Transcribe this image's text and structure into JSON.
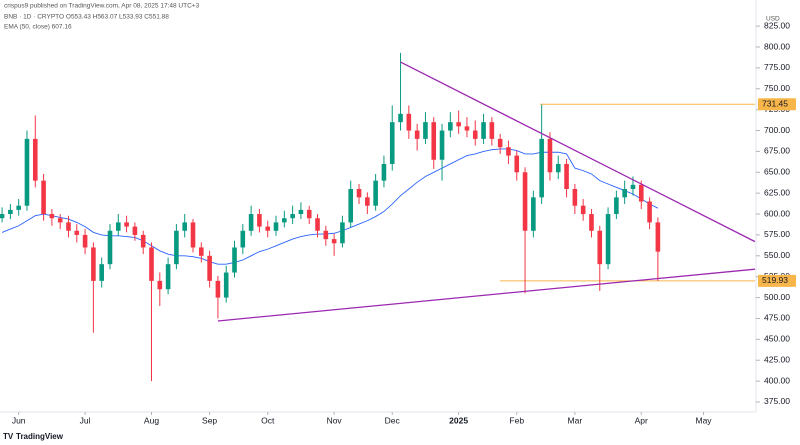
{
  "chart_data": {
    "type": "candlestick",
    "header": "crispus9 published on TradingView.com, Apr 08, 2025 17:48 UTC+3",
    "title": "BNB · 1D · CRYPTO  O553.43  H563.07  L533.93  C551.88",
    "indicator": "EMA (50, close)  607.16",
    "currency": "USD",
    "footer": "TradingView",
    "up_color": "#089981",
    "down_color": "#f23645",
    "open": [
      595,
      600,
      605,
      610,
      690,
      640,
      600,
      595,
      590,
      580,
      575,
      560,
      520,
      540,
      580,
      590,
      585,
      575,
      560,
      520,
      510,
      540,
      580,
      590,
      560,
      550,
      520,
      500,
      530,
      560,
      580,
      600,
      585,
      580,
      590,
      595,
      600,
      605,
      595,
      580,
      570,
      565,
      590,
      630,
      620,
      610,
      640,
      660,
      710,
      720,
      700,
      690,
      710,
      665,
      700,
      710,
      705,
      700,
      690,
      710,
      690,
      680,
      670,
      650,
      580,
      620,
      690,
      650,
      660,
      630,
      610,
      600,
      580,
      540,
      600,
      620,
      630,
      635,
      615,
      590
    ],
    "high": [
      608,
      612,
      618,
      700,
      718,
      648,
      606,
      600,
      598,
      588,
      582,
      566,
      548,
      588,
      600,
      598,
      590,
      580,
      566,
      530,
      548,
      588,
      600,
      594,
      566,
      556,
      526,
      538,
      568,
      588,
      610,
      606,
      592,
      598,
      604,
      610,
      614,
      610,
      600,
      586,
      576,
      598,
      640,
      636,
      626,
      648,
      670,
      730,
      793,
      730,
      708,
      722,
      716,
      708,
      722,
      724,
      716,
      712,
      720,
      716,
      696,
      688,
      676,
      656,
      628,
      731,
      698,
      670,
      666,
      636,
      618,
      606,
      586,
      608,
      628,
      640,
      645,
      640,
      620,
      596
    ],
    "low": [
      590,
      594,
      598,
      604,
      632,
      592,
      586,
      582,
      572,
      566,
      552,
      458,
      512,
      534,
      574,
      578,
      568,
      552,
      400,
      490,
      504,
      534,
      572,
      554,
      542,
      512,
      475,
      494,
      524,
      552,
      574,
      578,
      572,
      574,
      584,
      588,
      594,
      588,
      572,
      562,
      550,
      560,
      584,
      612,
      600,
      604,
      632,
      652,
      700,
      690,
      676,
      684,
      654,
      640,
      692,
      696,
      692,
      682,
      684,
      682,
      672,
      660,
      640,
      505,
      572,
      612,
      640,
      642,
      620,
      600,
      592,
      572,
      508,
      534,
      594,
      612,
      622,
      606,
      582,
      520
    ],
    "close": [
      600,
      605,
      610,
      690,
      640,
      600,
      595,
      590,
      580,
      575,
      560,
      520,
      540,
      580,
      590,
      585,
      575,
      560,
      520,
      510,
      540,
      580,
      590,
      560,
      550,
      520,
      500,
      530,
      560,
      580,
      600,
      585,
      580,
      590,
      595,
      600,
      605,
      595,
      580,
      570,
      565,
      590,
      630,
      620,
      610,
      640,
      660,
      710,
      720,
      700,
      690,
      710,
      665,
      700,
      710,
      705,
      700,
      690,
      710,
      690,
      680,
      670,
      650,
      580,
      620,
      690,
      650,
      660,
      630,
      610,
      600,
      580,
      540,
      600,
      620,
      630,
      635,
      615,
      590,
      555
    ],
    "ema": {
      "name": "EMA (50, close)",
      "color": "#2962ff",
      "values": [
        578,
        582,
        586,
        592,
        598,
        600,
        598,
        596,
        594,
        590,
        585,
        578,
        575,
        574,
        574,
        573,
        572,
        568,
        562,
        556,
        552,
        550,
        550,
        549,
        547,
        543,
        540,
        540,
        542,
        545,
        550,
        555,
        558,
        562,
        566,
        570,
        573,
        575,
        576,
        576,
        577,
        580,
        584,
        588,
        592,
        597,
        603,
        612,
        622,
        630,
        638,
        645,
        650,
        655,
        660,
        665,
        670,
        672,
        675,
        677,
        678,
        678,
        676,
        672,
        672,
        674,
        674,
        674,
        672,
        655,
        652,
        648,
        640,
        636,
        632,
        628,
        624,
        618,
        612,
        607
      ]
    },
    "levels": [
      {
        "value": 731.45,
        "color": "#f7b54a"
      },
      {
        "value": 519.93,
        "color": "#f7b54a"
      }
    ],
    "trendlines": [
      {
        "color": "#9c27b0",
        "points": [
          [
            48,
            782
          ],
          [
            90.7,
            567
          ]
        ]
      },
      {
        "color": "#9c27b0",
        "points": [
          [
            26,
            472
          ],
          [
            90.7,
            534
          ]
        ]
      }
    ],
    "xlim": [
      -0.25,
      90.7
    ],
    "xticks": [
      {
        "value": 2,
        "label": "Jun"
      },
      {
        "value": 10,
        "label": "Jul"
      },
      {
        "value": 18,
        "label": "Aug"
      },
      {
        "value": 25,
        "label": "Sep"
      },
      {
        "value": 32,
        "label": "Oct"
      },
      {
        "value": 40,
        "label": "Nov"
      },
      {
        "value": 47,
        "label": "Dec"
      },
      {
        "value": 55,
        "label": "2025"
      },
      {
        "value": 62,
        "label": "Feb"
      },
      {
        "value": 69,
        "label": "Mar"
      },
      {
        "value": 77,
        "label": "Apr"
      },
      {
        "value": 84.5,
        "label": "May"
      }
    ],
    "ylim": [
      365.4,
      844.3
    ],
    "yticks": [
      {
        "value": 375,
        "label": "375.00"
      },
      {
        "value": 400,
        "label": "400.00"
      },
      {
        "value": 425,
        "label": "425.00"
      },
      {
        "value": 450,
        "label": "450.00"
      },
      {
        "value": 475,
        "label": "475.00"
      },
      {
        "value": 500,
        "label": "500.00"
      },
      {
        "value": 525,
        "label": "525.00"
      },
      {
        "value": 550,
        "label": "550.00"
      },
      {
        "value": 575,
        "label": "575.00"
      },
      {
        "value": 600,
        "label": "600.00"
      },
      {
        "value": 625,
        "label": "625.00"
      },
      {
        "value": 650,
        "label": "650.00"
      },
      {
        "value": 675,
        "label": "675.00"
      },
      {
        "value": 700,
        "label": "700.00"
      },
      {
        "value": 725,
        "label": "725.00"
      },
      {
        "value": 750,
        "label": "750.00"
      },
      {
        "value": 775,
        "label": "775.00"
      },
      {
        "value": 800,
        "label": "800.00"
      },
      {
        "value": 825,
        "label": "825.00"
      }
    ]
  }
}
